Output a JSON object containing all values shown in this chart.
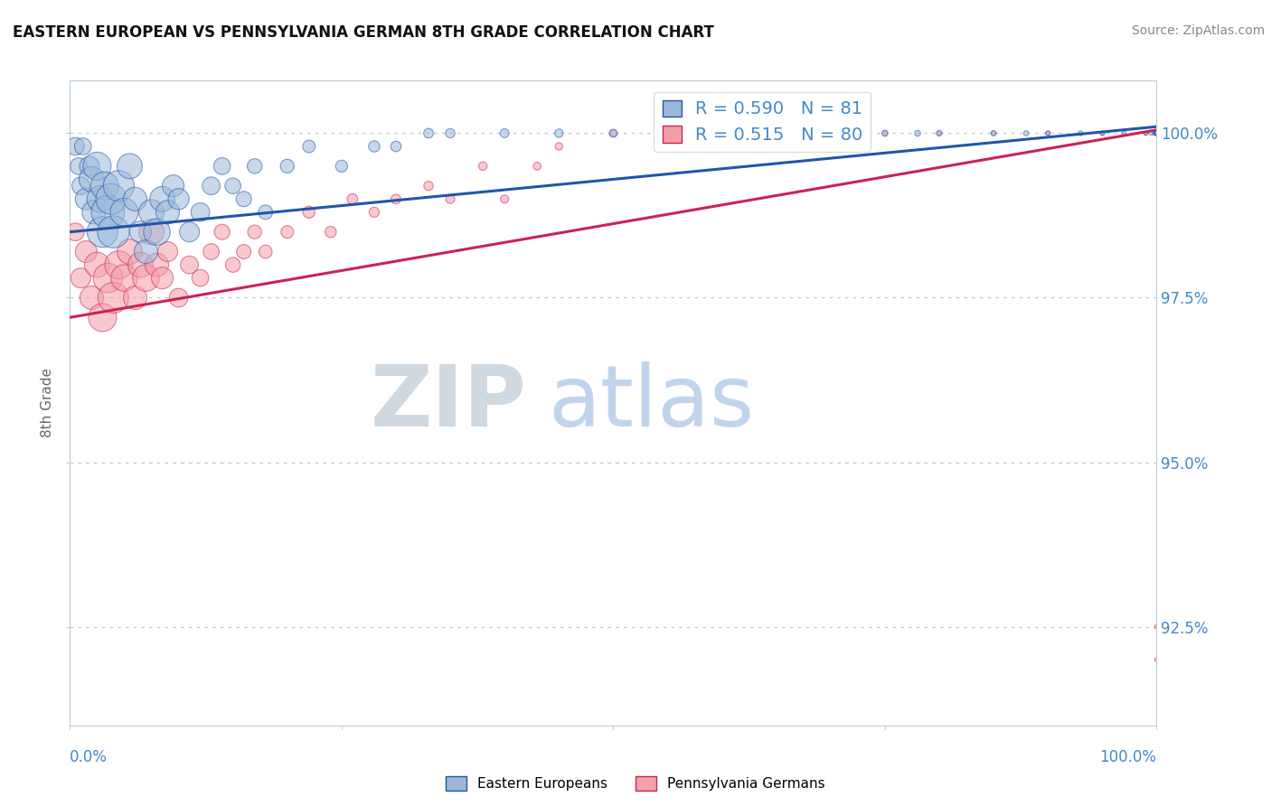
{
  "title": "EASTERN EUROPEAN VS PENNSYLVANIA GERMAN 8TH GRADE CORRELATION CHART",
  "source_text": "Source: ZipAtlas.com",
  "ylabel": "8th Grade",
  "y_ticks": [
    92.5,
    95.0,
    97.5,
    100.0
  ],
  "y_tick_labels": [
    "92.5%",
    "95.0%",
    "97.5%",
    "100.0%"
  ],
  "x_min": 0.0,
  "x_max": 100.0,
  "y_min": 91.0,
  "y_max": 100.8,
  "legend_blue_label": "R = 0.590   N = 81",
  "legend_pink_label": "R = 0.515   N = 80",
  "blue_color": "#9BB8D9",
  "pink_color": "#F4A0A8",
  "blue_line_color": "#2255AA",
  "pink_line_color": "#CC2255",
  "axis_label_color": "#4488CC",
  "watermark_zip": "ZIP",
  "watermark_atlas": "atlas",
  "watermark_color_zip": "#C8D8E8",
  "watermark_color_atlas": "#C0D4EE",
  "blue_scatter_x": [
    0.5,
    0.8,
    1.0,
    1.2,
    1.5,
    1.8,
    2.0,
    2.2,
    2.5,
    2.8,
    3.0,
    3.2,
    3.5,
    3.8,
    4.0,
    4.5,
    5.0,
    5.5,
    6.0,
    6.5,
    7.0,
    7.5,
    8.0,
    8.5,
    9.0,
    9.5,
    10.0,
    11.0,
    12.0,
    13.0,
    14.0,
    15.0,
    16.0,
    17.0,
    18.0,
    20.0,
    22.0,
    25.0,
    28.0,
    30.0,
    33.0,
    35.0,
    40.0,
    45.0,
    50.0,
    55.0,
    60.0,
    65.0,
    68.0,
    70.0,
    72.0,
    75.0,
    78.0,
    80.0,
    85.0,
    88.0,
    90.0,
    93.0,
    95.0,
    97.0,
    99.0,
    99.5,
    99.8,
    100.0,
    100.0,
    100.0,
    100.0,
    100.0,
    100.0,
    100.0,
    100.0,
    100.0,
    100.0,
    100.0,
    100.0,
    100.0,
    100.0,
    100.0,
    100.0,
    100.0,
    100.0
  ],
  "blue_scatter_y": [
    99.8,
    99.5,
    99.2,
    99.8,
    99.0,
    99.5,
    99.3,
    98.8,
    99.5,
    99.0,
    98.5,
    99.2,
    98.8,
    99.0,
    98.5,
    99.2,
    98.8,
    99.5,
    99.0,
    98.5,
    98.2,
    98.8,
    98.5,
    99.0,
    98.8,
    99.2,
    99.0,
    98.5,
    98.8,
    99.2,
    99.5,
    99.2,
    99.0,
    99.5,
    98.8,
    99.5,
    99.8,
    99.5,
    99.8,
    99.8,
    100.0,
    100.0,
    100.0,
    100.0,
    100.0,
    100.0,
    100.0,
    100.0,
    100.0,
    100.0,
    100.0,
    100.0,
    100.0,
    100.0,
    100.0,
    100.0,
    100.0,
    100.0,
    100.0,
    100.0,
    100.0,
    100.0,
    100.0,
    100.0,
    100.0,
    100.0,
    100.0,
    100.0,
    100.0,
    100.0,
    100.0,
    100.0,
    100.0,
    100.0,
    100.0,
    100.0,
    100.0,
    100.0,
    100.0,
    100.0,
    100.0
  ],
  "blue_scatter_size": [
    200,
    180,
    200,
    180,
    300,
    250,
    400,
    350,
    500,
    450,
    600,
    500,
    700,
    600,
    650,
    600,
    500,
    400,
    350,
    300,
    350,
    400,
    450,
    400,
    350,
    300,
    280,
    250,
    220,
    200,
    180,
    160,
    150,
    140,
    130,
    120,
    100,
    90,
    80,
    70,
    60,
    55,
    50,
    45,
    40,
    38,
    35,
    32,
    30,
    28,
    26,
    24,
    22,
    20,
    18,
    16,
    15,
    14,
    13,
    12,
    10,
    10,
    10,
    10,
    10,
    10,
    10,
    10,
    10,
    10,
    10,
    10,
    10,
    10,
    10,
    10,
    10,
    10,
    10,
    10,
    10
  ],
  "pink_scatter_x": [
    0.5,
    1.0,
    1.5,
    2.0,
    2.5,
    3.0,
    3.5,
    4.0,
    4.5,
    5.0,
    5.5,
    6.0,
    6.5,
    7.0,
    7.5,
    8.0,
    8.5,
    9.0,
    10.0,
    11.0,
    12.0,
    13.0,
    14.0,
    15.0,
    16.0,
    17.0,
    18.0,
    20.0,
    22.0,
    24.0,
    26.0,
    28.0,
    30.0,
    33.0,
    35.0,
    38.0,
    40.0,
    43.0,
    45.0,
    50.0,
    55.0,
    58.0,
    60.0,
    65.0,
    70.0,
    75.0,
    80.0,
    85.0,
    90.0,
    95.0,
    99.0,
    100.0,
    100.0,
    100.0,
    100.0,
    100.0,
    100.0,
    100.0,
    100.0,
    100.0,
    100.0,
    100.0,
    100.0,
    100.0,
    100.0,
    100.0,
    100.0,
    100.0,
    100.0,
    100.0,
    100.0,
    100.0,
    100.0,
    100.0,
    100.0,
    100.0,
    100.0,
    100.0,
    100.0,
    100.0
  ],
  "pink_scatter_y": [
    98.5,
    97.8,
    98.2,
    97.5,
    98.0,
    97.2,
    97.8,
    97.5,
    98.0,
    97.8,
    98.2,
    97.5,
    98.0,
    97.8,
    98.5,
    98.0,
    97.8,
    98.2,
    97.5,
    98.0,
    97.8,
    98.2,
    98.5,
    98.0,
    98.2,
    98.5,
    98.2,
    98.5,
    98.8,
    98.5,
    99.0,
    98.8,
    99.0,
    99.2,
    99.0,
    99.5,
    99.0,
    99.5,
    99.8,
    100.0,
    100.0,
    100.0,
    100.0,
    100.0,
    100.0,
    100.0,
    100.0,
    100.0,
    100.0,
    100.0,
    100.0,
    100.0,
    100.0,
    100.0,
    100.0,
    100.0,
    100.0,
    100.0,
    100.0,
    100.0,
    100.0,
    100.0,
    100.0,
    100.0,
    100.0,
    100.0,
    100.0,
    100.0,
    92.5,
    92.0,
    100.0,
    100.0,
    100.0,
    100.0,
    100.0,
    100.0,
    100.0,
    100.0,
    100.0,
    100.0
  ],
  "pink_scatter_size": [
    200,
    250,
    300,
    350,
    400,
    500,
    550,
    600,
    500,
    450,
    400,
    350,
    400,
    450,
    400,
    350,
    300,
    250,
    220,
    200,
    180,
    160,
    150,
    140,
    130,
    120,
    110,
    100,
    90,
    80,
    70,
    65,
    60,
    55,
    50,
    45,
    42,
    38,
    35,
    30,
    25,
    22,
    20,
    18,
    16,
    14,
    12,
    11,
    10,
    10,
    10,
    10,
    10,
    10,
    10,
    10,
    10,
    10,
    10,
    10,
    10,
    10,
    10,
    10,
    10,
    10,
    10,
    10,
    10,
    10,
    10,
    10,
    10,
    10,
    10,
    10,
    10,
    10,
    10,
    10
  ],
  "blue_trend_x0": 0.0,
  "blue_trend_x1": 100.0,
  "blue_trend_y0": 98.5,
  "blue_trend_y1": 100.1,
  "pink_trend_x0": 0.0,
  "pink_trend_x1": 100.0,
  "pink_trend_y0": 97.2,
  "pink_trend_y1": 100.05
}
